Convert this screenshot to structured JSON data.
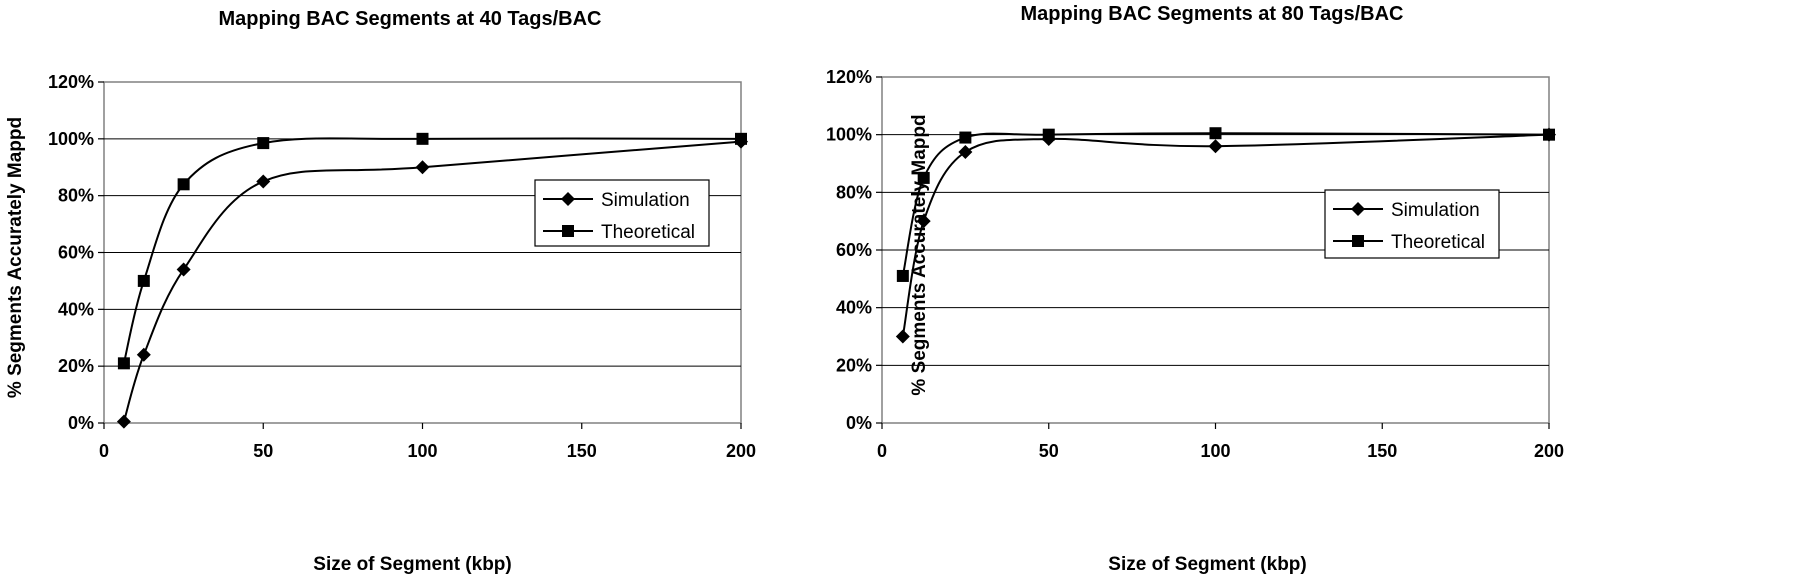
{
  "chart_data": [
    {
      "type": "line",
      "title": "Mapping BAC Segments at 40 Tags/BAC",
      "xlabel": "Size of Segment (kbp)",
      "ylabel": "% Segments Accurately Mappd",
      "xlim": [
        0,
        200
      ],
      "ylim": [
        0,
        120
      ],
      "xticks": [
        "0",
        "50",
        "100",
        "150",
        "200"
      ],
      "yticks": [
        "0%",
        "20%",
        "40%",
        "60%",
        "80%",
        "100%",
        "120%"
      ],
      "grid": "horizontal",
      "legend_position": "right",
      "series": [
        {
          "name": "Simulation",
          "marker": "diamond",
          "x": [
            6.25,
            12.5,
            25,
            50,
            100,
            200
          ],
          "y": [
            0.5,
            24,
            54,
            85,
            90,
            99
          ]
        },
        {
          "name": "Theoretical",
          "marker": "square",
          "x": [
            6.25,
            12.5,
            25,
            50,
            100,
            200
          ],
          "y": [
            21,
            50,
            84,
            98.5,
            100,
            100
          ]
        }
      ]
    },
    {
      "type": "line",
      "title": "Mapping BAC Segments at 80 Tags/BAC",
      "xlabel": "Size of Segment (kbp)",
      "ylabel": "% Segments Accurately Mappd",
      "xlim": [
        0,
        200
      ],
      "ylim": [
        0,
        120
      ],
      "xticks": [
        "0",
        "50",
        "100",
        "150",
        "200"
      ],
      "yticks": [
        "0%",
        "20%",
        "40%",
        "60%",
        "80%",
        "100%",
        "120%"
      ],
      "grid": "horizontal",
      "legend_position": "right",
      "series": [
        {
          "name": "Simulation",
          "marker": "diamond",
          "x": [
            6.25,
            12.5,
            25,
            50,
            100,
            200
          ],
          "y": [
            30,
            70,
            94,
            98.5,
            96,
            100
          ]
        },
        {
          "name": "Theoretical",
          "marker": "square",
          "x": [
            6.25,
            12.5,
            25,
            50,
            100,
            200
          ],
          "y": [
            51,
            85,
            99,
            100,
            100.5,
            100
          ]
        }
      ]
    }
  ]
}
